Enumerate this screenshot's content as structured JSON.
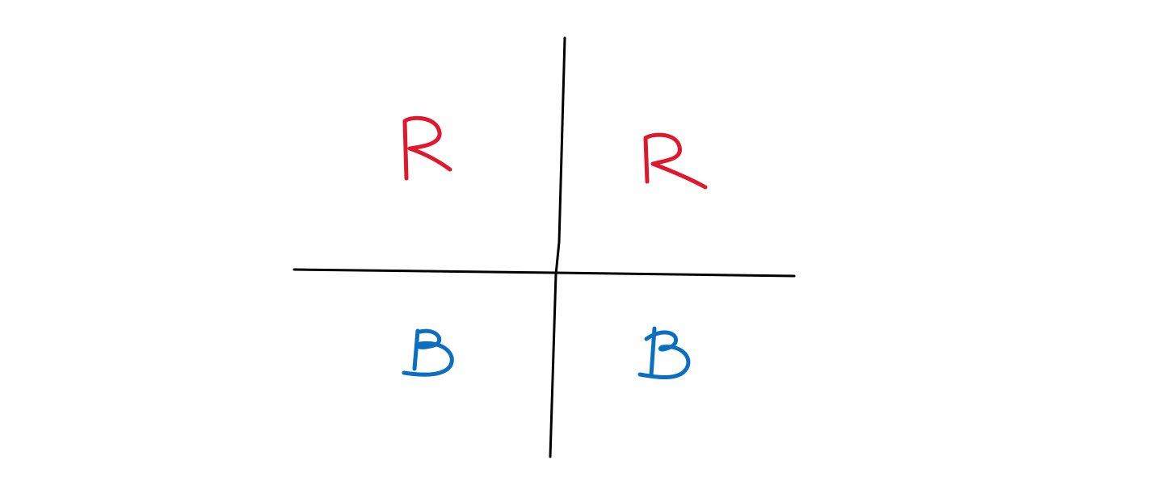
{
  "diagram": {
    "colors": {
      "background": "#ffffff",
      "axis": "#000000",
      "red_label": "#e0182d",
      "blue_label": "#0a6fc2"
    },
    "quadrants": {
      "top_left": {
        "label": "R"
      },
      "top_right": {
        "label": "R"
      },
      "bottom_left": {
        "label": "B"
      },
      "bottom_right": {
        "label": "B"
      }
    }
  }
}
